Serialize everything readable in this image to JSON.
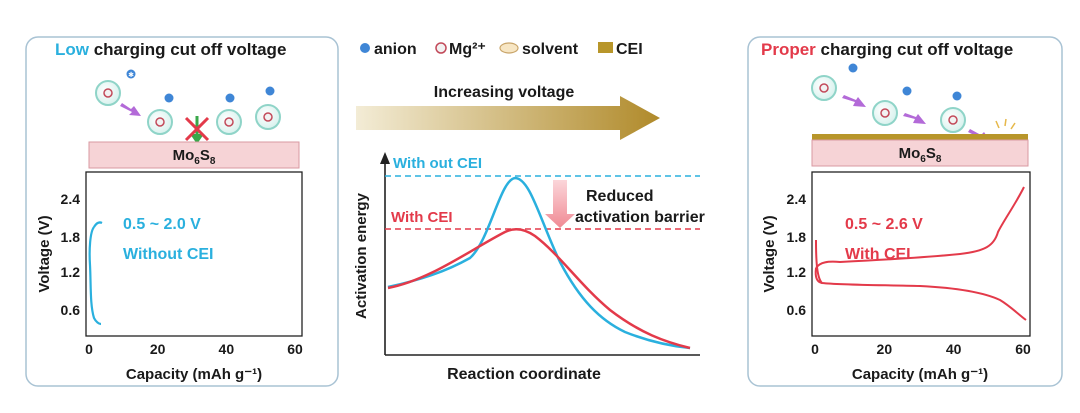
{
  "colors": {
    "blue": "#2ab0de",
    "red": "#e33a4a",
    "cei": "#b8962a",
    "electrode_fill": "#f6d3d6",
    "anion": "#3f86d6",
    "solvent_ring": "#8fd4c8",
    "arrow_purple": "#b36ad8",
    "panel_border": "#a9c3d4",
    "text": "#1a1a1a"
  },
  "legend": {
    "anion": "anion",
    "mg": "Mg²⁺",
    "solvent": "solvent",
    "cei": "CEI"
  },
  "left_panel": {
    "title_highlight": "Low",
    "title_rest": " charging cut off voltage",
    "electrode_main": "Mo",
    "electrode_sub1": "6",
    "electrode_mid": "S",
    "electrode_sub2": "8",
    "plot": {
      "ylabel": "Voltage (V)",
      "xlabel": "Capacity (mAh g⁻¹)",
      "yticks": [
        "2.4",
        "1.8",
        "1.2",
        "0.6"
      ],
      "xticks": [
        "0",
        "20",
        "40",
        "60"
      ],
      "range_label": "0.5 ~ 2.0 V",
      "cei_label": "Without CEI"
    }
  },
  "center": {
    "arrow_label": "Increasing voltage",
    "ylabel": "Activation energy",
    "xlabel": "Reaction coordinate",
    "label_without": "With out CEI",
    "label_with": "With CEI",
    "reduced_line1": "Reduced",
    "reduced_line2": "activation barrier"
  },
  "right_panel": {
    "title_highlight": "Proper",
    "title_rest": " charging cut off voltage",
    "electrode_main": "Mo",
    "electrode_sub1": "6",
    "electrode_mid": "S",
    "electrode_sub2": "8",
    "plot": {
      "ylabel": "Voltage (V)",
      "xlabel": "Capacity (mAh g⁻¹)",
      "yticks": [
        "2.4",
        "1.8",
        "1.2",
        "0.6"
      ],
      "xticks": [
        "0",
        "20",
        "40",
        "60"
      ],
      "range_label": "0.5 ~ 2.6 V",
      "cei_label": "With CEI"
    }
  }
}
